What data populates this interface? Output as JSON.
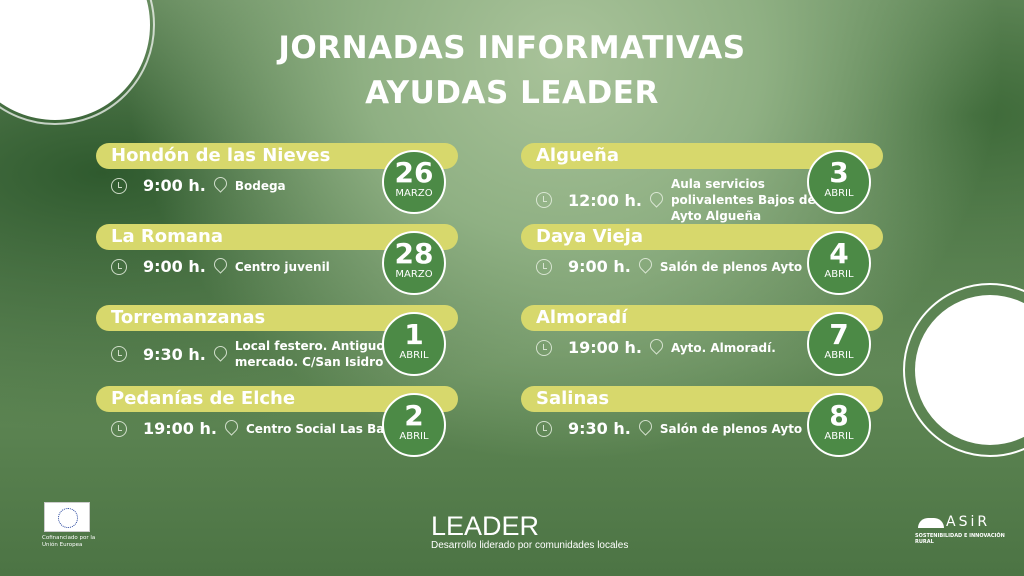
{
  "title": {
    "line1": "JORNADAS INFORMATIVAS",
    "line2": "AYUDAS LEADER"
  },
  "events_left": [
    {
      "town": "Hondón de las Nieves",
      "time": "9:00 h.",
      "place": "Bodega",
      "day": "26",
      "month": "MARZO"
    },
    {
      "town": "La Romana",
      "time": "9:00 h.",
      "place": "Centro juvenil",
      "day": "28",
      "month": "MARZO"
    },
    {
      "town": "Torremanzanas",
      "time": "9:30 h.",
      "place": "Local festero. Antiguo mercado. C/San Isidro",
      "day": "1",
      "month": "ABRIL"
    },
    {
      "town": "Pedanías de Elche",
      "time": "19:00 h.",
      "place": "Centro Social Las Bayas",
      "day": "2",
      "month": "ABRIL"
    }
  ],
  "events_right": [
    {
      "town": "Algueña",
      "time": "12:00 h.",
      "place": "Aula servicios polivalentes Bajos del Ayto Algueña",
      "day": "3",
      "month": "ABRIL"
    },
    {
      "town": "Daya Vieja",
      "time": "9:00 h.",
      "place": "Salón de plenos Ayto",
      "day": "4",
      "month": "ABRIL"
    },
    {
      "town": "Almoradí",
      "time": "19:00 h.",
      "place": "Ayto. Almoradí.",
      "day": "7",
      "month": "ABRIL"
    },
    {
      "town": "Salinas",
      "time": "9:30 h.",
      "place": "Salón de plenos Ayto",
      "day": "8",
      "month": "ABRIL"
    }
  ],
  "footer": {
    "eu_caption": "Cofinanciado por la Unión Europea",
    "leader": "LEADER",
    "leader_sub": "Desarrollo liderado por comunidades locales",
    "asir": "ASiR",
    "asir_sub": "SOSTENIBILIDAD E INNOVACIÓN RURAL"
  },
  "colors": {
    "bar": "#d7d86c",
    "circle": "#4c8a46"
  }
}
